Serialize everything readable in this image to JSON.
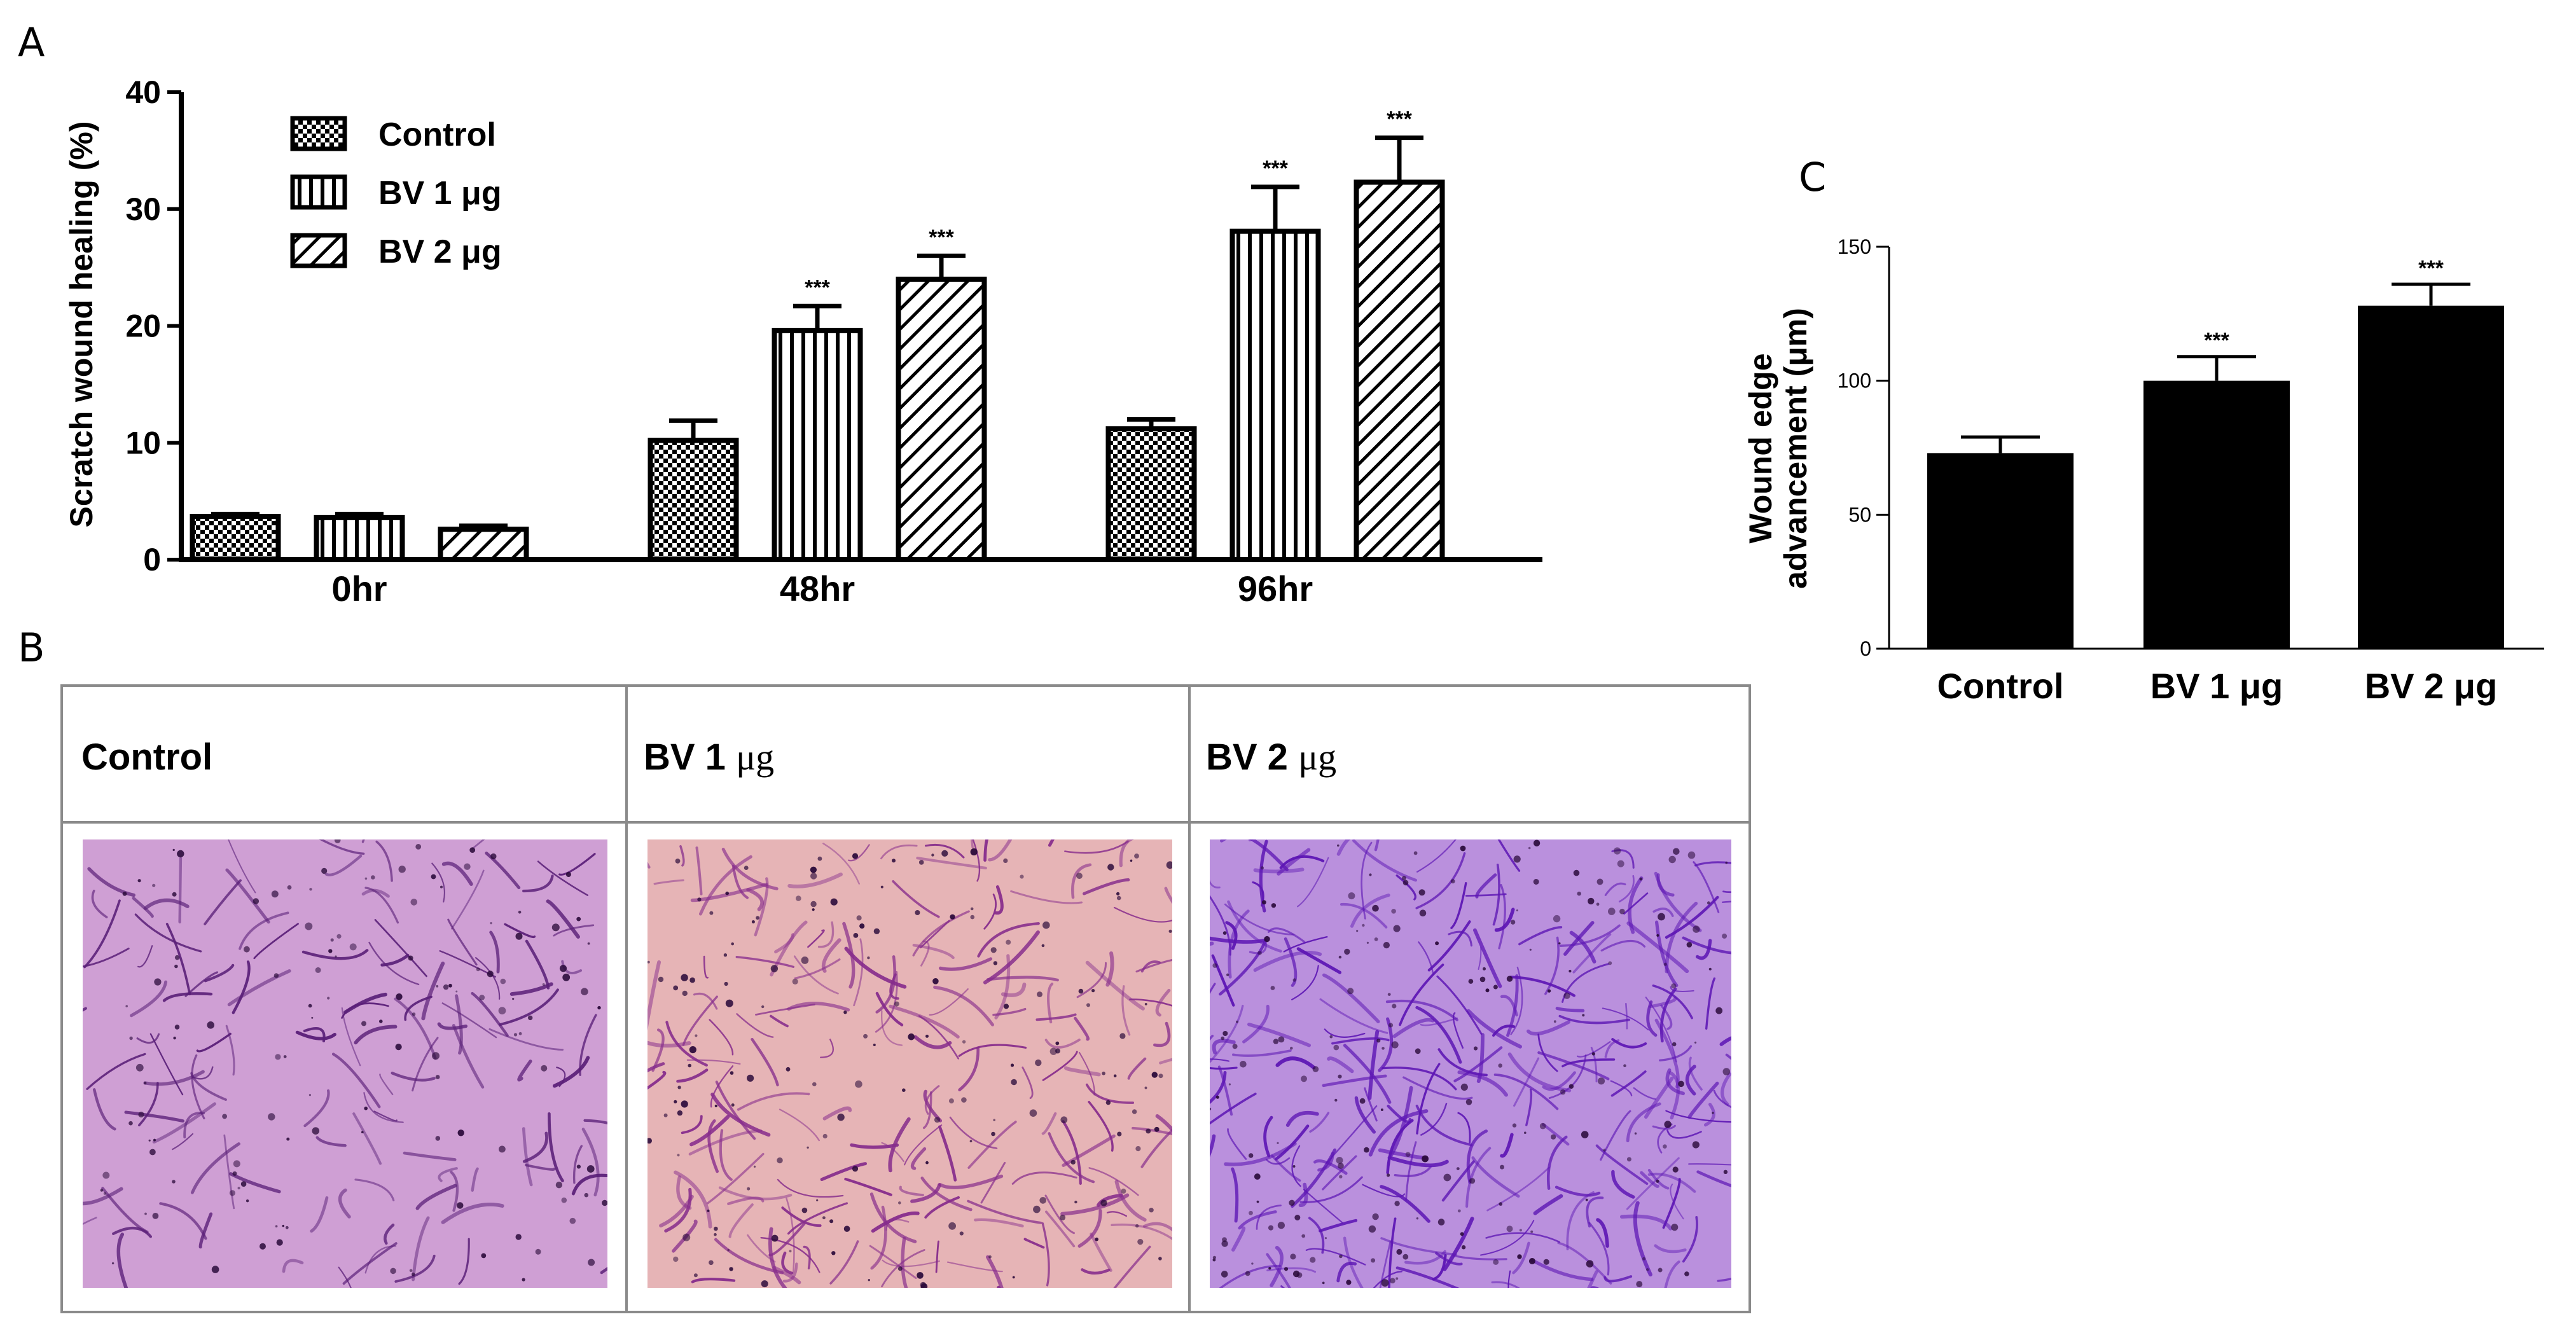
{
  "panels": {
    "a": "A",
    "b": "B",
    "c": "C"
  },
  "chart_data": [
    {
      "id": "A",
      "type": "bar",
      "xlabel": "",
      "ylabel": "Scratch wound healing (%)",
      "ylim": [
        0,
        40
      ],
      "yticks": [
        "0",
        "10",
        "20",
        "30",
        "40"
      ],
      "categories": [
        "0hr",
        "48hr",
        "96hr"
      ],
      "legend_position": "top-left",
      "series": [
        {
          "name": "Control",
          "pattern": "checker",
          "values": [
            3.7,
            10.2,
            11.2
          ],
          "errors": [
            0.2,
            1.7,
            0.8
          ],
          "sig": [
            "",
            "",
            ""
          ]
        },
        {
          "name": "BV 1 μg",
          "pattern": "vertical",
          "values": [
            3.6,
            19.6,
            28.1
          ],
          "errors": [
            0.3,
            2.1,
            3.8
          ],
          "sig": [
            "",
            "***",
            "***"
          ]
        },
        {
          "name": "BV 2 μg",
          "pattern": "diagonal",
          "values": [
            2.6,
            24.0,
            32.3
          ],
          "errors": [
            0.3,
            2.0,
            3.8
          ],
          "sig": [
            "",
            "***",
            "***"
          ]
        }
      ]
    },
    {
      "id": "C",
      "type": "bar",
      "xlabel": "",
      "ylabel_line1": "Wound edge",
      "ylabel_line2": "advancement (μm)",
      "ylim": [
        0,
        150
      ],
      "yticks": [
        "0",
        "50",
        "100",
        "150"
      ],
      "categories": [
        "Control",
        "BV 1 μg",
        "BV 2 μg"
      ],
      "values": [
        73,
        100,
        128
      ],
      "errors": [
        6,
        9,
        8
      ],
      "sig": [
        "",
        "***",
        "***"
      ],
      "color": "#000000"
    }
  ],
  "table": {
    "headers": [
      {
        "main": "Control",
        "unit": ""
      },
      {
        "main": "BV 1 ",
        "unit": "μg"
      },
      {
        "main": "BV 2 ",
        "unit": "μg"
      }
    ]
  },
  "micrographs": [
    {
      "background": "#cf9fd4",
      "stain": "#5a1f78",
      "density": 0.5
    },
    {
      "background": "#e6b4b6",
      "stain": "#862c8c",
      "density": 0.75
    },
    {
      "background": "#ba90dd",
      "stain": "#5d16b4",
      "density": 1.0
    }
  ]
}
